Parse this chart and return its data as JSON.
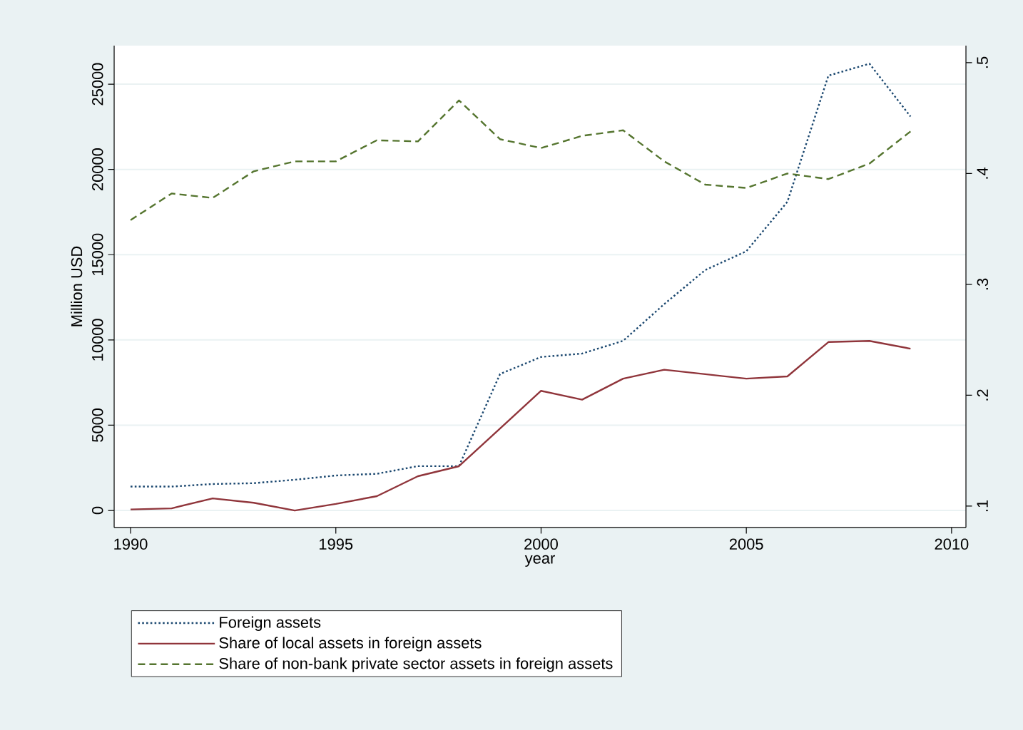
{
  "chart_data": {
    "type": "line",
    "xlabel": "year",
    "ylabel": "Million USD",
    "x": [
      1990,
      1991,
      1992,
      1993,
      1994,
      1995,
      1996,
      1997,
      1998,
      1999,
      2000,
      2001,
      2002,
      2003,
      2004,
      2005,
      2006,
      2007,
      2008,
      2009
    ],
    "series": [
      {
        "name": "Foreign assets",
        "color": "#1a476f",
        "line_style": "dotted",
        "axis": "y",
        "values": [
          1400,
          1400,
          1550,
          1600,
          1800,
          2050,
          2150,
          2600,
          2600,
          8000,
          9000,
          9200,
          9950,
          12100,
          14100,
          15200,
          18100,
          25500,
          26200,
          23100
        ]
      },
      {
        "name": "Share of local assets in foreign assets",
        "color": "#90353b",
        "line_style": "solid",
        "axis": "y2",
        "values": [
          0.097,
          0.098,
          0.107,
          0.103,
          0.096,
          0.102,
          0.109,
          0.127,
          0.136,
          0.17,
          0.204,
          0.196,
          0.215,
          0.223,
          0.219,
          0.215,
          0.217,
          0.248,
          0.249,
          0.242
        ]
      },
      {
        "name": "Share of non-bank private sector assets in foreign assets",
        "color": "#55752f",
        "line_style": "dashed",
        "axis": "y2",
        "values": [
          0.358,
          0.382,
          0.378,
          0.402,
          0.411,
          0.411,
          0.43,
          0.429,
          0.466,
          0.431,
          0.423,
          0.434,
          0.439,
          0.411,
          0.39,
          0.387,
          0.4,
          0.395,
          0.409,
          0.438
        ]
      }
    ],
    "xlim": [
      1989.6,
      2010.35
    ],
    "xticks": [
      1990,
      1995,
      2000,
      2005,
      2010
    ],
    "ylim": [
      -1000,
      27260
    ],
    "yticks": [
      0,
      5000,
      10000,
      15000,
      20000,
      25000
    ],
    "y2lim": [
      0.0807,
      0.5154
    ],
    "y2ticks": [
      {
        "value": 0.1,
        "label": ".1"
      },
      {
        "value": 0.2,
        "label": ".2"
      },
      {
        "value": 0.3,
        "label": ".3"
      },
      {
        "value": 0.4,
        "label": ".4"
      },
      {
        "value": 0.5,
        "label": ".5"
      }
    ],
    "grid": "y",
    "legend": "bottom"
  }
}
